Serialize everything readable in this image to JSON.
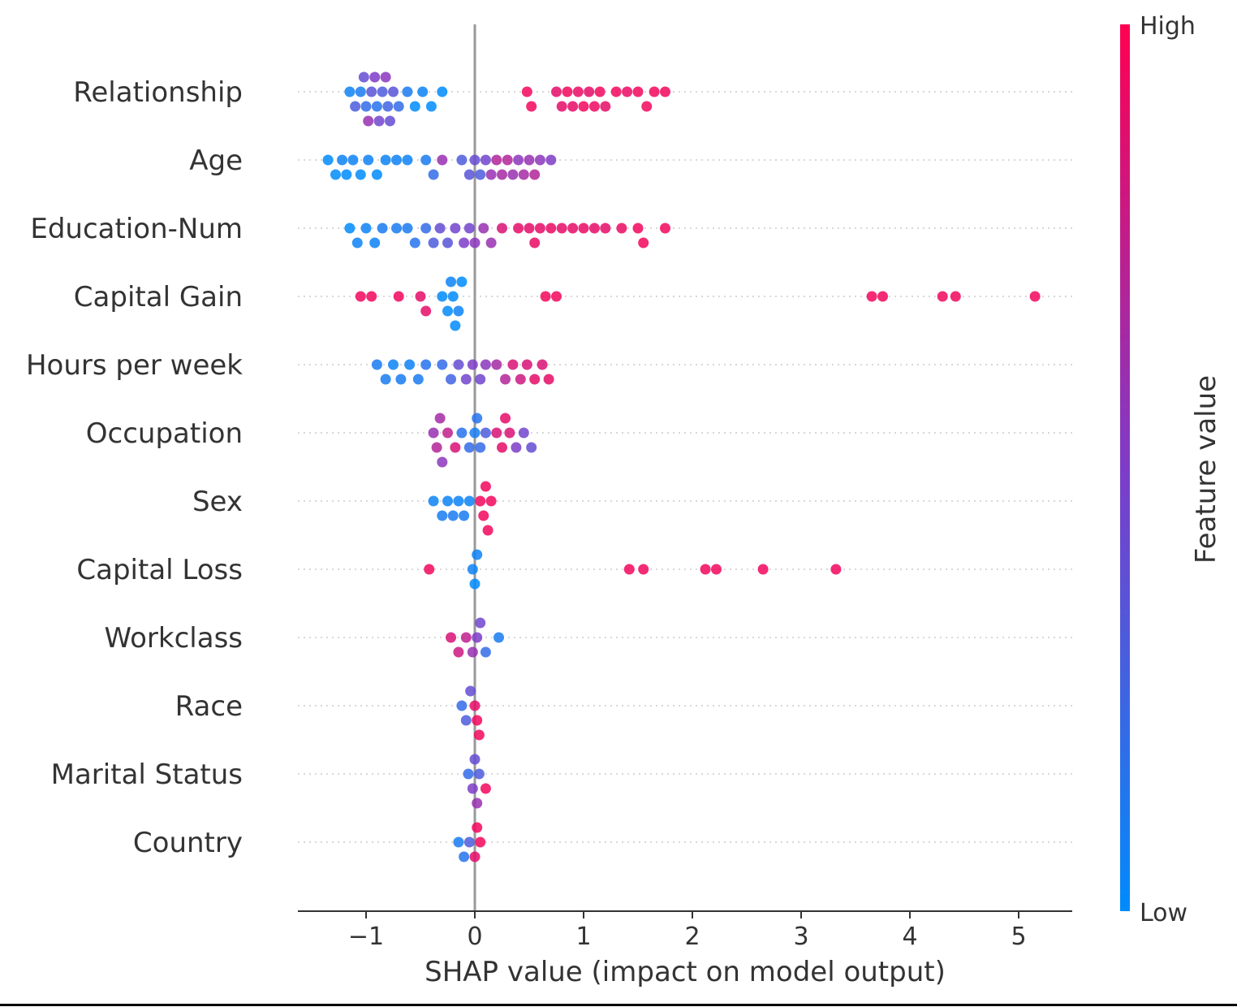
{
  "chart_data": {
    "type": "scatter",
    "subtype": "shap-beeswarm",
    "title": "",
    "xlabel": "SHAP value (impact on model output)",
    "xlim": [
      -1.62,
      5.5
    ],
    "xticks": [
      {
        "value": -1,
        "label": "−1"
      },
      {
        "value": 0,
        "label": "0"
      },
      {
        "value": 1,
        "label": "1"
      },
      {
        "value": 2,
        "label": "2"
      },
      {
        "value": 3,
        "label": "3"
      },
      {
        "value": 4,
        "label": "4"
      },
      {
        "value": 5,
        "label": "5"
      }
    ],
    "grid": "horizontal dotted",
    "zero_line": true,
    "colorbar": {
      "title": "Feature value",
      "high_label": "High",
      "low_label": "Low",
      "high_color": "#ff0051",
      "mid_color": "#7e3cc8",
      "low_color": "#008bfb"
    },
    "series": [
      {
        "feature": "Relationship",
        "points": [
          [
            -1.15,
            0.05
          ],
          [
            -1.1,
            0.3
          ],
          [
            -1.05,
            0.1
          ],
          [
            -1.02,
            0.4
          ],
          [
            -1.0,
            0.2
          ],
          [
            -0.98,
            0.6
          ],
          [
            -0.95,
            0.35
          ],
          [
            -0.92,
            0.5
          ],
          [
            -0.9,
            0.15
          ],
          [
            -0.88,
            0.45
          ],
          [
            -0.85,
            0.3
          ],
          [
            -0.82,
            0.55
          ],
          [
            -0.8,
            0.25
          ],
          [
            -0.78,
            0.4
          ],
          [
            -0.75,
            0.35
          ],
          [
            -0.7,
            0.2
          ],
          [
            -0.62,
            0.1
          ],
          [
            -0.55,
            0.0
          ],
          [
            -0.48,
            0.05
          ],
          [
            -0.4,
            0.0
          ],
          [
            -0.3,
            0.0
          ],
          [
            0.48,
            0.95
          ],
          [
            0.52,
            0.95
          ],
          [
            0.75,
            0.9
          ],
          [
            0.8,
            0.9
          ],
          [
            0.85,
            0.95
          ],
          [
            0.9,
            0.9
          ],
          [
            0.95,
            0.92
          ],
          [
            1.0,
            0.95
          ],
          [
            1.05,
            0.9
          ],
          [
            1.1,
            0.93
          ],
          [
            1.15,
            0.95
          ],
          [
            1.2,
            0.9
          ],
          [
            1.3,
            0.95
          ],
          [
            1.4,
            0.92
          ],
          [
            1.5,
            0.95
          ],
          [
            1.58,
            0.95
          ],
          [
            1.65,
            0.95
          ],
          [
            1.75,
            0.95
          ]
        ]
      },
      {
        "feature": "Age",
        "points": [
          [
            -1.35,
            0.0
          ],
          [
            -1.28,
            0.0
          ],
          [
            -1.22,
            0.05
          ],
          [
            -1.18,
            0.0
          ],
          [
            -1.12,
            0.05
          ],
          [
            -1.05,
            0.0
          ],
          [
            -0.98,
            0.05
          ],
          [
            -0.9,
            0.0
          ],
          [
            -0.82,
            0.05
          ],
          [
            -0.72,
            0.05
          ],
          [
            -0.62,
            0.05
          ],
          [
            -0.45,
            0.1
          ],
          [
            -0.38,
            0.2
          ],
          [
            -0.3,
            0.6
          ],
          [
            -0.12,
            0.3
          ],
          [
            -0.05,
            0.35
          ],
          [
            0.0,
            0.4
          ],
          [
            0.05,
            0.3
          ],
          [
            0.1,
            0.45
          ],
          [
            0.15,
            0.6
          ],
          [
            0.2,
            0.7
          ],
          [
            0.25,
            0.65
          ],
          [
            0.3,
            0.7
          ],
          [
            0.35,
            0.6
          ],
          [
            0.4,
            0.55
          ],
          [
            0.45,
            0.65
          ],
          [
            0.5,
            0.6
          ],
          [
            0.55,
            0.7
          ],
          [
            0.6,
            0.55
          ],
          [
            0.7,
            0.5
          ]
        ]
      },
      {
        "feature": "Education-Num",
        "points": [
          [
            -1.15,
            0.0
          ],
          [
            -1.08,
            0.05
          ],
          [
            -1.0,
            0.05
          ],
          [
            -0.92,
            0.05
          ],
          [
            -0.85,
            0.1
          ],
          [
            -0.72,
            0.1
          ],
          [
            -0.62,
            0.1
          ],
          [
            -0.55,
            0.15
          ],
          [
            -0.45,
            0.2
          ],
          [
            -0.38,
            0.3
          ],
          [
            -0.32,
            0.4
          ],
          [
            -0.25,
            0.35
          ],
          [
            -0.18,
            0.45
          ],
          [
            -0.1,
            0.5
          ],
          [
            -0.05,
            0.45
          ],
          [
            0.0,
            0.55
          ],
          [
            0.08,
            0.6
          ],
          [
            0.15,
            0.6
          ],
          [
            0.25,
            0.85
          ],
          [
            0.4,
            0.9
          ],
          [
            0.5,
            0.9
          ],
          [
            0.55,
            0.92
          ],
          [
            0.6,
            0.9
          ],
          [
            0.7,
            0.92
          ],
          [
            0.8,
            0.9
          ],
          [
            0.9,
            0.9
          ],
          [
            1.0,
            0.92
          ],
          [
            1.1,
            0.9
          ],
          [
            1.2,
            0.9
          ],
          [
            1.35,
            0.92
          ],
          [
            1.5,
            0.95
          ],
          [
            1.55,
            0.95
          ],
          [
            1.75,
            0.95
          ]
        ]
      },
      {
        "feature": "Capital Gain",
        "points": [
          [
            -1.05,
            0.95
          ],
          [
            -0.95,
            0.95
          ],
          [
            -0.7,
            0.95
          ],
          [
            -0.5,
            0.9
          ],
          [
            -0.45,
            0.9
          ],
          [
            -0.3,
            0.0
          ],
          [
            -0.25,
            0.0
          ],
          [
            -0.22,
            0.05
          ],
          [
            -0.2,
            0.0
          ],
          [
            -0.18,
            0.0
          ],
          [
            -0.15,
            0.05
          ],
          [
            -0.12,
            0.0
          ],
          [
            0.65,
            0.95
          ],
          [
            0.75,
            0.95
          ],
          [
            3.65,
            0.95
          ],
          [
            3.75,
            0.95
          ],
          [
            4.3,
            0.95
          ],
          [
            4.42,
            0.95
          ],
          [
            5.15,
            0.95
          ]
        ]
      },
      {
        "feature": "Hours per week",
        "points": [
          [
            -0.9,
            0.1
          ],
          [
            -0.82,
            0.1
          ],
          [
            -0.75,
            0.05
          ],
          [
            -0.68,
            0.1
          ],
          [
            -0.6,
            0.05
          ],
          [
            -0.52,
            0.1
          ],
          [
            -0.45,
            0.15
          ],
          [
            -0.3,
            0.2
          ],
          [
            -0.22,
            0.25
          ],
          [
            -0.15,
            0.4
          ],
          [
            -0.08,
            0.45
          ],
          [
            -0.02,
            0.5
          ],
          [
            0.05,
            0.45
          ],
          [
            0.1,
            0.55
          ],
          [
            0.2,
            0.65
          ],
          [
            0.28,
            0.7
          ],
          [
            0.35,
            0.85
          ],
          [
            0.42,
            0.8
          ],
          [
            0.48,
            0.85
          ],
          [
            0.55,
            0.9
          ],
          [
            0.62,
            0.85
          ],
          [
            0.68,
            0.9
          ]
        ]
      },
      {
        "feature": "Occupation",
        "points": [
          [
            -0.38,
            0.6
          ],
          [
            -0.35,
            0.7
          ],
          [
            -0.32,
            0.65
          ],
          [
            -0.3,
            0.55
          ],
          [
            -0.25,
            0.75
          ],
          [
            -0.18,
            0.85
          ],
          [
            -0.12,
            0.15
          ],
          [
            -0.05,
            0.2
          ],
          [
            0.0,
            0.1
          ],
          [
            0.02,
            0.15
          ],
          [
            0.05,
            0.2
          ],
          [
            0.1,
            0.3
          ],
          [
            0.2,
            0.85
          ],
          [
            0.25,
            0.9
          ],
          [
            0.28,
            0.9
          ],
          [
            0.32,
            0.85
          ],
          [
            0.38,
            0.5
          ],
          [
            0.45,
            0.45
          ],
          [
            0.52,
            0.4
          ]
        ]
      },
      {
        "feature": "Sex",
        "points": [
          [
            -0.38,
            0.05
          ],
          [
            -0.3,
            0.1
          ],
          [
            -0.25,
            0.05
          ],
          [
            -0.2,
            0.1
          ],
          [
            -0.15,
            0.05
          ],
          [
            -0.1,
            0.1
          ],
          [
            -0.05,
            0.05
          ],
          [
            0.05,
            0.95
          ],
          [
            0.08,
            0.95
          ],
          [
            0.1,
            0.95
          ],
          [
            0.12,
            0.95
          ],
          [
            0.15,
            0.95
          ]
        ]
      },
      {
        "feature": "Capital Loss",
        "points": [
          [
            -0.42,
            0.95
          ],
          [
            -0.02,
            0.05
          ],
          [
            0.0,
            0.0
          ],
          [
            0.02,
            0.05
          ],
          [
            1.42,
            0.95
          ],
          [
            1.55,
            0.95
          ],
          [
            2.12,
            0.95
          ],
          [
            2.22,
            0.95
          ],
          [
            2.65,
            0.95
          ],
          [
            3.32,
            0.95
          ]
        ]
      },
      {
        "feature": "Workclass",
        "points": [
          [
            -0.22,
            0.85
          ],
          [
            -0.15,
            0.8
          ],
          [
            -0.08,
            0.75
          ],
          [
            -0.02,
            0.6
          ],
          [
            0.02,
            0.5
          ],
          [
            0.05,
            0.45
          ],
          [
            0.1,
            0.2
          ],
          [
            0.22,
            0.1
          ]
        ]
      },
      {
        "feature": "Race",
        "points": [
          [
            -0.12,
            0.2
          ],
          [
            -0.08,
            0.3
          ],
          [
            -0.04,
            0.4
          ],
          [
            0.0,
            0.9
          ],
          [
            0.02,
            0.95
          ],
          [
            0.04,
            0.95
          ]
        ]
      },
      {
        "feature": "Marital Status",
        "points": [
          [
            -0.06,
            0.2
          ],
          [
            -0.02,
            0.5
          ],
          [
            0.0,
            0.4
          ],
          [
            0.02,
            0.6
          ],
          [
            0.04,
            0.3
          ],
          [
            0.1,
            0.95
          ]
        ]
      },
      {
        "feature": "Country",
        "points": [
          [
            -0.15,
            0.1
          ],
          [
            -0.1,
            0.15
          ],
          [
            -0.05,
            0.3
          ],
          [
            0.0,
            0.9
          ],
          [
            0.02,
            0.95
          ],
          [
            0.05,
            0.95
          ]
        ]
      }
    ]
  }
}
